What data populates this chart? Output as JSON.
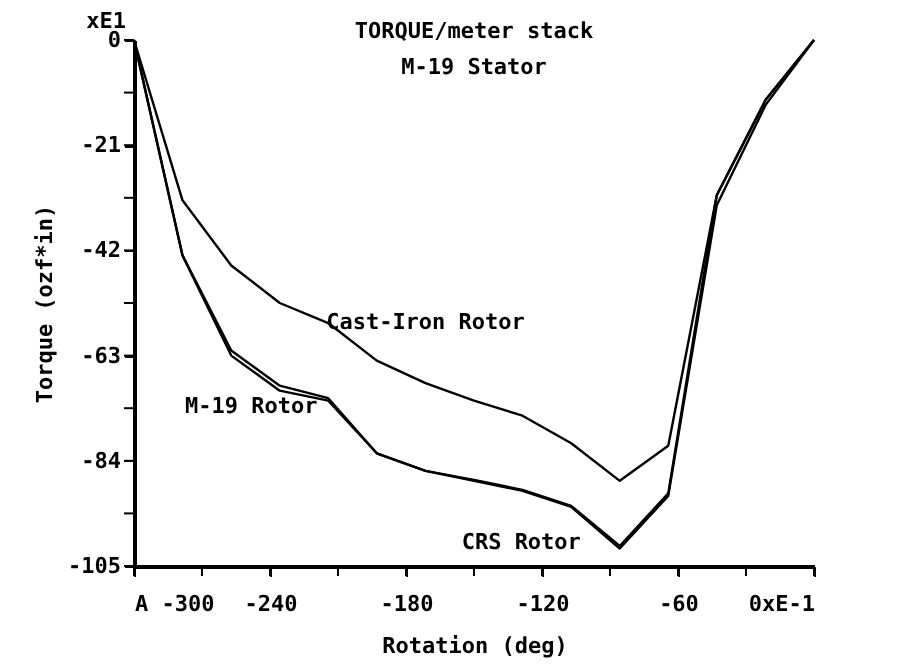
{
  "chart_data": {
    "type": "line",
    "title": "TORQUE/meter stack",
    "subtitle": "M-19 Stator",
    "xlabel": "Rotation (deg)",
    "ylabel": "Torque (ozf*in)",
    "annotations": [
      "xE1"
    ],
    "xlim": [
      -300,
      0
    ],
    "ylim": [
      -105,
      0
    ],
    "xticks": [
      {
        "value": -300,
        "label": "A -300"
      },
      {
        "value": -270,
        "label": null
      },
      -240,
      {
        "value": -210,
        "label": null
      },
      -180,
      {
        "value": -150,
        "label": null
      },
      -120,
      {
        "value": -90,
        "label": null
      },
      -60,
      {
        "value": -30,
        "label": null
      },
      {
        "value": 0,
        "label": "0xE-1"
      }
    ],
    "yticks": [
      0,
      {
        "value": -10.5,
        "label": null
      },
      -21,
      {
        "value": -31.5,
        "label": null
      },
      -42,
      {
        "value": -52.5,
        "label": null
      },
      -63,
      {
        "value": -73.5,
        "label": null
      },
      -84,
      {
        "value": -94.5,
        "label": null
      },
      -105
    ],
    "x": [
      -300,
      -278.6,
      -257.1,
      -235.7,
      -214.3,
      -192.9,
      -171.4,
      -150,
      -128.6,
      -107.1,
      -85.7,
      -64.3,
      -42.9,
      -21.4,
      0
    ],
    "grid": false,
    "marker": "none",
    "line_style": "solid",
    "series": [
      {
        "name": "Cast-Iron Rotor",
        "color": "#000000",
        "values": [
          0,
          -32,
          -45,
          -52.5,
          -56.5,
          -64,
          -68.5,
          -72,
          -75,
          -80.5,
          -88,
          -81,
          -31,
          -12,
          0
        ]
      },
      {
        "name": "M-19 Rotor",
        "color": "#000000",
        "values": [
          0,
          -43,
          -62,
          -69,
          -71.5,
          -82.5,
          -86,
          -87.8,
          -89.8,
          -93,
          -101,
          -90.5,
          -31,
          -12,
          0
        ]
      },
      {
        "name": "CRS Rotor",
        "color": "#000000",
        "values": [
          0,
          -43,
          -63,
          -70,
          -72,
          -82.5,
          -86,
          -88,
          -90,
          -93.2,
          -101.5,
          -91,
          -33,
          -13,
          0
        ]
      }
    ]
  }
}
